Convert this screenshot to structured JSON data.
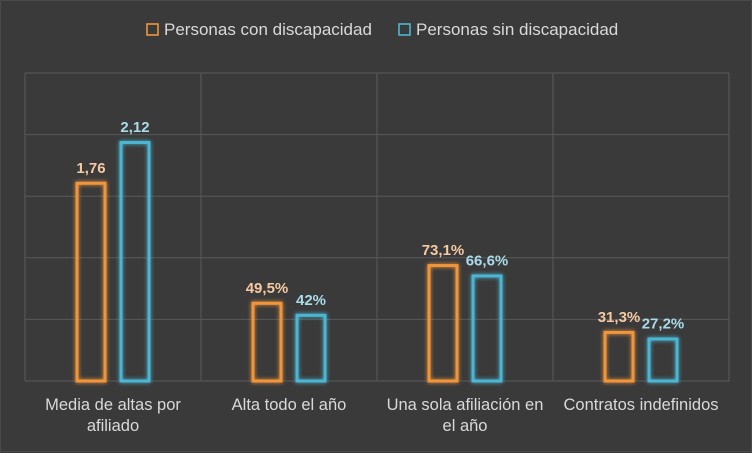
{
  "chart_data": {
    "type": "bar",
    "categories": [
      [
        "Media de altas por",
        "afiliado"
      ],
      [
        "Alta todo el año"
      ],
      [
        "Una sola afiliación en",
        "el año"
      ],
      [
        "Contratos indefinidos"
      ]
    ],
    "series": [
      {
        "name": "Personas con discapacidad",
        "color": "#f0953b",
        "values": [
          1.76,
          0.495,
          0.731,
          0.313
        ],
        "labels": [
          "1,76",
          "49,5%",
          "73,1%",
          "31,3%"
        ]
      },
      {
        "name": "Personas sin discapacidad",
        "color": "#4bb6d3",
        "values": [
          2.12,
          0.42,
          0.666,
          0.272
        ],
        "labels": [
          "2,12",
          "42%",
          "66,6%",
          "27,2%"
        ]
      }
    ],
    "legend_position": "top",
    "grid": true,
    "label_colors": [
      "#f6c9a2",
      "#a9dbe9"
    ]
  }
}
